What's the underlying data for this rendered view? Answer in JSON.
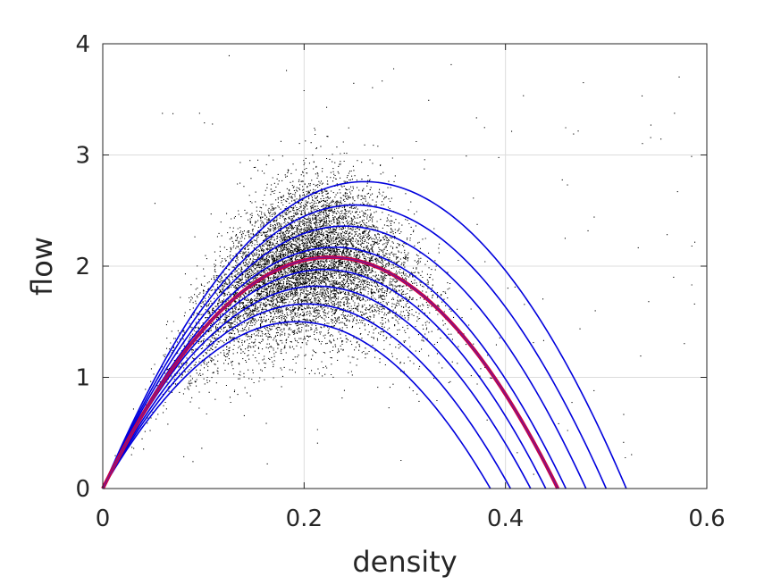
{
  "chart_data": {
    "type": "scatter",
    "title": "",
    "xlabel": "density",
    "ylabel": "flow",
    "xlim": [
      0,
      0.6
    ],
    "ylim": [
      0,
      4
    ],
    "xticks": [
      0,
      0.2,
      0.4,
      0.6
    ],
    "xtick_labels": [
      "0",
      "0.2",
      "0.4",
      "0.6"
    ],
    "yticks": [
      0,
      1,
      2,
      3,
      4
    ],
    "ytick_labels": [
      "0",
      "1",
      "2",
      "3",
      "4"
    ],
    "grid": true,
    "scatter_color": "#000000",
    "scatter_cloud": {
      "description_points": "dense point cloud of observed density/flow pairs",
      "peak_density": 0.2,
      "peak_flow": 2.1,
      "approx_max_flow": 3.6,
      "approx_min_flow": 0.6
    },
    "curve_family": {
      "color": "#0000dd",
      "model": "parabolic fundamental diagram (flow = a*density*(1 - density/jam_density))",
      "curves": [
        {
          "jam_density": 0.385,
          "peak_flow": 1.5
        },
        {
          "jam_density": 0.405,
          "peak_flow": 1.66
        },
        {
          "jam_density": 0.425,
          "peak_flow": 1.82
        },
        {
          "jam_density": 0.44,
          "peak_flow": 1.97
        },
        {
          "jam_density": 0.46,
          "peak_flow": 2.17
        },
        {
          "jam_density": 0.48,
          "peak_flow": 2.36
        },
        {
          "jam_density": 0.5,
          "peak_flow": 2.55
        },
        {
          "jam_density": 0.52,
          "peak_flow": 2.76
        }
      ]
    },
    "mean_curve": {
      "color": "#cc0044",
      "jam_density": 0.452,
      "peak_flow": 2.08
    }
  }
}
